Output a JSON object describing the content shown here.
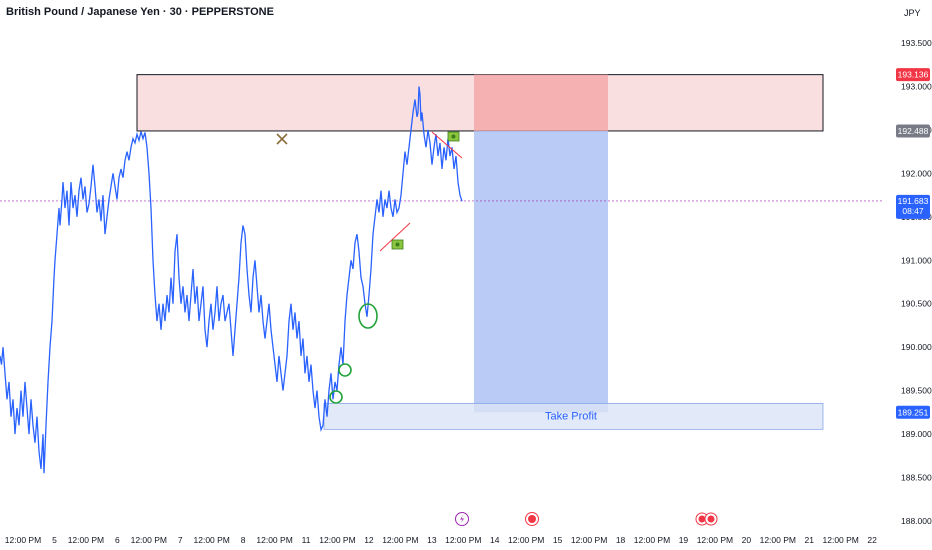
{
  "header": {
    "title": "British Pound / Japanese Yen · 30 · PEPPERSTONE",
    "currency": "JPY"
  },
  "chart_data": {
    "type": "line",
    "series": [
      {
        "points": [
          [
            0,
            189.9
          ],
          [
            1.5,
            189.8
          ],
          [
            3,
            190.0
          ],
          [
            5,
            189.7
          ],
          [
            7,
            189.4
          ],
          [
            9,
            189.6
          ],
          [
            11,
            189.2
          ],
          [
            13,
            189.4
          ],
          [
            15,
            189.0
          ],
          [
            17,
            189.3
          ],
          [
            19,
            189.1
          ],
          [
            21,
            189.5
          ],
          [
            23,
            189.2
          ],
          [
            25,
            189.6
          ],
          [
            27,
            189.3
          ],
          [
            29,
            189.0
          ],
          [
            31,
            189.4
          ],
          [
            33,
            189.1
          ],
          [
            35,
            188.9
          ],
          [
            37,
            189.2
          ],
          [
            39,
            188.8
          ],
          [
            41,
            188.6
          ],
          [
            43,
            189.0
          ],
          [
            44,
            188.55
          ],
          [
            46,
            189.1
          ],
          [
            48,
            189.6
          ],
          [
            50,
            190.0
          ],
          [
            52,
            190.3
          ],
          [
            54,
            190.8
          ],
          [
            55,
            191.0
          ],
          [
            57,
            191.3
          ],
          [
            59,
            191.6
          ],
          [
            60,
            191.4
          ],
          [
            62,
            191.7
          ],
          [
            63,
            191.9
          ],
          [
            65,
            191.6
          ],
          [
            67,
            191.8
          ],
          [
            69,
            191.4
          ],
          [
            71,
            191.9
          ],
          [
            73,
            191.6
          ],
          [
            75,
            191.75
          ],
          [
            77,
            191.5
          ],
          [
            79,
            191.8
          ],
          [
            81,
            191.95
          ],
          [
            83,
            191.7
          ],
          [
            85,
            191.85
          ],
          [
            87,
            191.55
          ],
          [
            89,
            191.65
          ],
          [
            91,
            191.85
          ],
          [
            93,
            192.1
          ],
          [
            95,
            191.85
          ],
          [
            97,
            191.55
          ],
          [
            99,
            191.7
          ],
          [
            101,
            191.45
          ],
          [
            103,
            191.75
          ],
          [
            105,
            191.3
          ],
          [
            107,
            191.5
          ],
          [
            109,
            191.7
          ],
          [
            111,
            191.85
          ],
          [
            113,
            192.0
          ],
          [
            115,
            191.85
          ],
          [
            117,
            191.7
          ],
          [
            119,
            191.95
          ],
          [
            121,
            192.05
          ],
          [
            123,
            191.95
          ],
          [
            125,
            192.15
          ],
          [
            127,
            192.25
          ],
          [
            129,
            192.15
          ],
          [
            131,
            192.3
          ],
          [
            133,
            192.4
          ],
          [
            135,
            192.35
          ],
          [
            137,
            192.45
          ],
          [
            139,
            192.38
          ],
          [
            141,
            192.48
          ],
          [
            143,
            192.4
          ],
          [
            145,
            192.47
          ],
          [
            147,
            192.3
          ],
          [
            149,
            192.0
          ],
          [
            151,
            191.6
          ],
          [
            153,
            191.0
          ],
          [
            155,
            190.6
          ],
          [
            157,
            190.3
          ],
          [
            159,
            190.5
          ],
          [
            161,
            190.2
          ],
          [
            163,
            190.5
          ],
          [
            165,
            190.3
          ],
          [
            167,
            190.6
          ],
          [
            169,
            190.4
          ],
          [
            171,
            190.8
          ],
          [
            173,
            190.5
          ],
          [
            175,
            191.1
          ],
          [
            177,
            191.3
          ],
          [
            179,
            190.8
          ],
          [
            181,
            190.5
          ],
          [
            183,
            190.7
          ],
          [
            185,
            190.4
          ],
          [
            187,
            190.6
          ],
          [
            189,
            190.3
          ],
          [
            191,
            190.6
          ],
          [
            193,
            190.9
          ],
          [
            195,
            190.5
          ],
          [
            197,
            190.7
          ],
          [
            199,
            190.3
          ],
          [
            201,
            190.5
          ],
          [
            203,
            190.7
          ],
          [
            205,
            190.2
          ],
          [
            207,
            190.0
          ],
          [
            209,
            190.3
          ],
          [
            211,
            190.5
          ],
          [
            213,
            190.2
          ],
          [
            215,
            190.4
          ],
          [
            217,
            190.7
          ],
          [
            219,
            190.3
          ],
          [
            221,
            190.5
          ],
          [
            223,
            190.6
          ],
          [
            225,
            190.3
          ],
          [
            227,
            190.4
          ],
          [
            229,
            190.5
          ],
          [
            231,
            190.2
          ],
          [
            233,
            189.9
          ],
          [
            235,
            190.2
          ],
          [
            237,
            190.5
          ],
          [
            239,
            190.8
          ],
          [
            241,
            191.2
          ],
          [
            243,
            191.4
          ],
          [
            245,
            191.3
          ],
          [
            247,
            190.9
          ],
          [
            249,
            190.6
          ],
          [
            251,
            190.4
          ],
          [
            253,
            190.8
          ],
          [
            255,
            191.0
          ],
          [
            257,
            190.7
          ],
          [
            259,
            190.4
          ],
          [
            261,
            190.6
          ],
          [
            263,
            190.3
          ],
          [
            265,
            190.1
          ],
          [
            267,
            190.3
          ],
          [
            269,
            190.5
          ],
          [
            271,
            190.2
          ],
          [
            273,
            190.0
          ],
          [
            275,
            189.8
          ],
          [
            277,
            189.6
          ],
          [
            279,
            189.9
          ],
          [
            281,
            189.7
          ],
          [
            283,
            189.5
          ],
          [
            285,
            189.7
          ],
          [
            287,
            189.9
          ],
          [
            289,
            190.3
          ],
          [
            291,
            190.5
          ],
          [
            293,
            190.2
          ],
          [
            295,
            190.4
          ],
          [
            297,
            190.1
          ],
          [
            299,
            190.3
          ],
          [
            301,
            189.9
          ],
          [
            303,
            190.1
          ],
          [
            305,
            189.7
          ],
          [
            307,
            189.9
          ],
          [
            309,
            189.6
          ],
          [
            311,
            189.8
          ],
          [
            313,
            189.5
          ],
          [
            315,
            189.3
          ],
          [
            317,
            189.5
          ],
          [
            319,
            189.2
          ],
          [
            321,
            189.05
          ],
          [
            323,
            189.1
          ],
          [
            325,
            189.4
          ],
          [
            327,
            189.2
          ],
          [
            329,
            189.5
          ],
          [
            331,
            189.7
          ],
          [
            333,
            189.4
          ],
          [
            335,
            189.6
          ],
          [
            337,
            189.5
          ],
          [
            339,
            189.8
          ],
          [
            341,
            190.0
          ],
          [
            343,
            189.8
          ],
          [
            345,
            190.3
          ],
          [
            347,
            190.6
          ],
          [
            349,
            190.8
          ],
          [
            351,
            191.0
          ],
          [
            353,
            190.9
          ],
          [
            355,
            191.2
          ],
          [
            357,
            191.3
          ],
          [
            359,
            191.1
          ],
          [
            361,
            190.8
          ],
          [
            363,
            190.7
          ],
          [
            365,
            190.5
          ],
          [
            367,
            190.35
          ],
          [
            369,
            190.6
          ],
          [
            371,
            190.9
          ],
          [
            373,
            191.3
          ],
          [
            375,
            191.5
          ],
          [
            377,
            191.7
          ],
          [
            379,
            191.55
          ],
          [
            381,
            191.8
          ],
          [
            383,
            191.5
          ],
          [
            385,
            191.7
          ],
          [
            387,
            191.6
          ],
          [
            389,
            191.8
          ],
          [
            391,
            191.6
          ],
          [
            393,
            191.5
          ],
          [
            395,
            191.7
          ],
          [
            397,
            191.55
          ],
          [
            399,
            191.6
          ],
          [
            401,
            191.75
          ],
          [
            403,
            192.0
          ],
          [
            405,
            192.25
          ],
          [
            407,
            192.1
          ],
          [
            409,
            192.3
          ],
          [
            411,
            192.5
          ],
          [
            413,
            192.7
          ],
          [
            415,
            192.85
          ],
          [
            417,
            192.65
          ],
          [
            418,
            192.7
          ],
          [
            419,
            193.0
          ],
          [
            420,
            192.9
          ],
          [
            421,
            192.6
          ],
          [
            422,
            192.7
          ],
          [
            424,
            192.45
          ],
          [
            426,
            192.3
          ],
          [
            428,
            192.5
          ],
          [
            430,
            192.35
          ],
          [
            432,
            192.1
          ],
          [
            434,
            192.3
          ],
          [
            436,
            192.45
          ],
          [
            438,
            192.2
          ],
          [
            440,
            192.35
          ],
          [
            442,
            192.05
          ],
          [
            444,
            192.3
          ],
          [
            446,
            192.15
          ],
          [
            448,
            192.4
          ],
          [
            450,
            192.2
          ],
          [
            452,
            192.3
          ],
          [
            454,
            192.05
          ],
          [
            456,
            192.2
          ],
          [
            458,
            191.9
          ],
          [
            460,
            191.75
          ],
          [
            462,
            191.68
          ]
        ]
      }
    ],
    "y_ticks": [
      "193.500",
      "193.000",
      "192.500",
      "192.000",
      "191.500",
      "191.000",
      "190.500",
      "190.000",
      "189.500",
      "189.000",
      "188.500",
      "188.000"
    ],
    "x_ticks": [
      "12:00 PM",
      "5",
      "12:00 PM",
      "6",
      "12:00 PM",
      "7",
      "12:00 PM",
      "8",
      "12:00 PM",
      "11",
      "12:00 PM",
      "12",
      "12:00 PM",
      "13",
      "12:00 PM",
      "14",
      "12:00 PM",
      "15",
      "12:00 PM",
      "18",
      "12:00 PM",
      "19",
      "12:00 PM",
      "20",
      "12:00 PM",
      "21",
      "12:00 PM",
      "22"
    ],
    "annotations": {
      "resistance_zone": {
        "top": 193.136,
        "bottom": 192.488
      },
      "take_profit_label": "Take Profit",
      "take_profit_level": 189.251,
      "current_price": "191.683",
      "countdown": "08:47",
      "stop_label": "193.136",
      "entry_label": "192.488",
      "tp_label": "189.251"
    },
    "colors": {
      "line": "#2962ff",
      "zone_fill": "#f7d1d1",
      "zone_entry_fill": "#f4a5a5",
      "short_fill": "#aec2f3",
      "tp_fill": "#dbe3f6",
      "stop_tag": "#f23645",
      "price_tag": "#2962ff",
      "neutral_tag": "#787b86",
      "circle": "#22a33a"
    }
  }
}
